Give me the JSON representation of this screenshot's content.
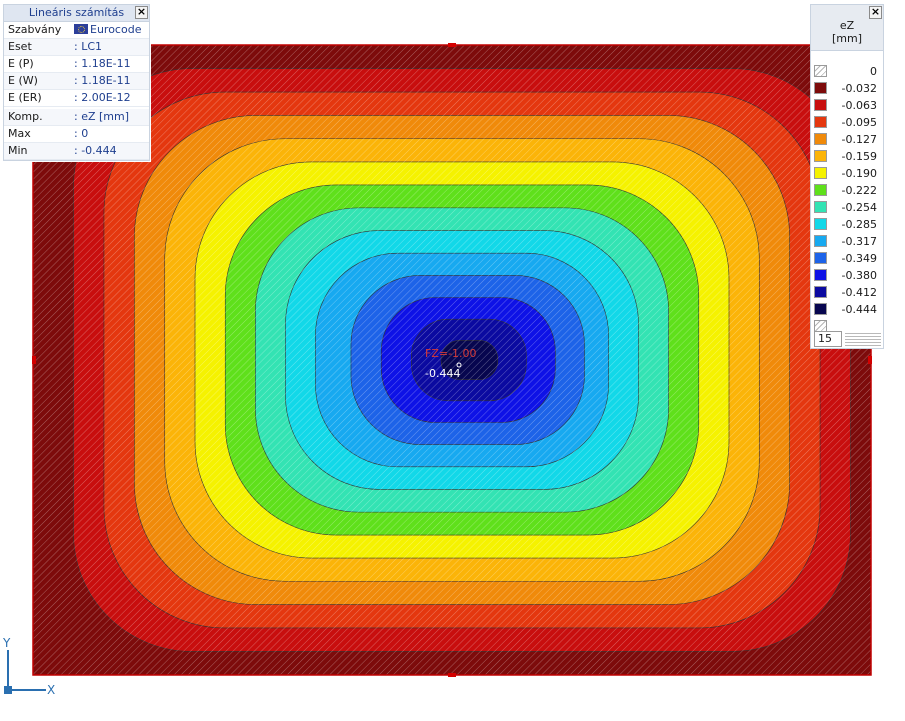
{
  "info_panel": {
    "title": "Lineáris számítás",
    "rows": [
      {
        "key": "Szabvány",
        "value": "Eurocode"
      },
      {
        "key": "Eset",
        "value": ": LC1"
      },
      {
        "key": "E (P)",
        "value": ": 1.18E-11"
      },
      {
        "key": "E (W)",
        "value": ": 1.18E-11"
      },
      {
        "key": "E (ER)",
        "value": ": 2.00E-12"
      },
      {
        "key": "Komp.",
        "value": ": eZ [mm]"
      },
      {
        "key": "Max",
        "value": ": 0"
      },
      {
        "key": "Min",
        "value": ": -0.444"
      }
    ]
  },
  "legend": {
    "title_line1": "eZ",
    "title_line2": "[mm]",
    "close_label": "×",
    "count": "15",
    "items": [
      {
        "value": "0",
        "color": "#7d0b0b",
        "hatch": true
      },
      {
        "value": "-0.032",
        "color": "#7d0b0b"
      },
      {
        "value": "-0.063",
        "color": "#c80e0e"
      },
      {
        "value": "-0.095",
        "color": "#e4370f"
      },
      {
        "value": "-0.127",
        "color": "#f08a0a"
      },
      {
        "value": "-0.159",
        "color": "#fbb408"
      },
      {
        "value": "-0.190",
        "color": "#f5f200"
      },
      {
        "value": "-0.222",
        "color": "#5fe01b"
      },
      {
        "value": "-0.254",
        "color": "#33e3b3"
      },
      {
        "value": "-0.285",
        "color": "#12d8e8"
      },
      {
        "value": "-0.317",
        "color": "#17a9f0"
      },
      {
        "value": "-0.349",
        "color": "#1d63e8"
      },
      {
        "value": "-0.380",
        "color": "#0e12e6"
      },
      {
        "value": "-0.412",
        "color": "#0b0aa0"
      },
      {
        "value": "-0.444",
        "color": "#07064f"
      }
    ]
  },
  "plot": {
    "load_label": "FZ=-1.00",
    "min_label": "-0.444"
  },
  "axes": {
    "x": "X",
    "y": "Y"
  },
  "close_label": "×"
}
